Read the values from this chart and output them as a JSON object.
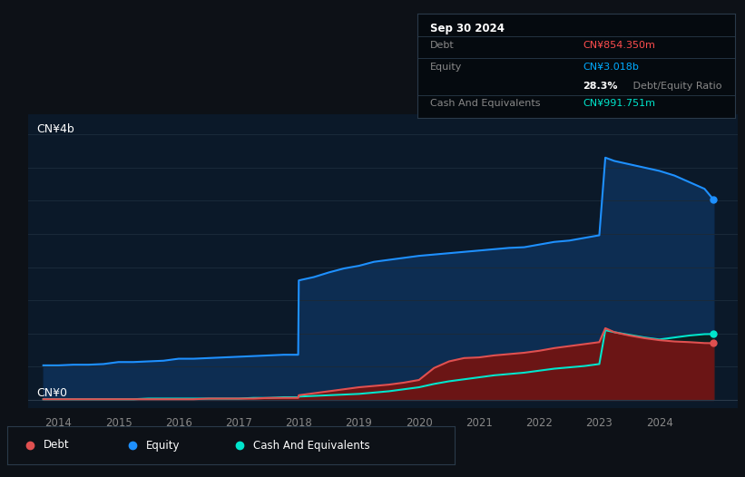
{
  "bg_color": "#0d1117",
  "plot_bg_color": "#0b1929",
  "grid_color": "#1a2a3a",
  "title_box": {
    "date": "Sep 30 2024",
    "debt_label": "Debt",
    "debt_value": "CN¥854.350m",
    "debt_color": "#ff4d4d",
    "equity_label": "Equity",
    "equity_value": "CN¥3.018b",
    "equity_color": "#00aaff",
    "ratio_bold": "28.3%",
    "ratio_text": " Debt/Equity Ratio",
    "cash_label": "Cash And Equivalents",
    "cash_value": "CN¥991.751m",
    "cash_color": "#00e5cc",
    "box_bg": "#050a0f",
    "box_border": "#2a3a4a"
  },
  "ylabel_top": "CN¥4b",
  "ylabel_bottom": "CN¥0",
  "xlim": [
    2013.5,
    2025.3
  ],
  "ylim": [
    -0.12,
    4.3
  ],
  "xticks": [
    2014,
    2015,
    2016,
    2017,
    2018,
    2019,
    2020,
    2021,
    2022,
    2023,
    2024
  ],
  "equity_color": "#1e90ff",
  "equity_fill": "#0d2d52",
  "debt_color": "#e05050",
  "debt_fill": "#6b1515",
  "cash_color": "#00e5cc",
  "cash_fill": "#0a2020",
  "legend": [
    {
      "label": "Debt",
      "color": "#e05050"
    },
    {
      "label": "Equity",
      "color": "#1e90ff"
    },
    {
      "label": "Cash And Equivalents",
      "color": "#00e5cc"
    }
  ],
  "years": [
    2013.75,
    2014.0,
    2014.25,
    2014.5,
    2014.75,
    2015.0,
    2015.25,
    2015.5,
    2015.75,
    2016.0,
    2016.25,
    2016.5,
    2016.75,
    2017.0,
    2017.25,
    2017.5,
    2017.75,
    2017.99,
    2018.0,
    2018.25,
    2018.5,
    2018.75,
    2019.0,
    2019.25,
    2019.5,
    2019.75,
    2020.0,
    2020.25,
    2020.5,
    2020.75,
    2021.0,
    2021.25,
    2021.5,
    2021.75,
    2022.0,
    2022.25,
    2022.5,
    2022.75,
    2023.0,
    2023.1,
    2023.25,
    2023.5,
    2023.75,
    2024.0,
    2024.25,
    2024.5,
    2024.75,
    2024.9
  ],
  "equity": [
    0.52,
    0.52,
    0.53,
    0.53,
    0.54,
    0.57,
    0.57,
    0.58,
    0.59,
    0.62,
    0.62,
    0.63,
    0.64,
    0.65,
    0.66,
    0.67,
    0.68,
    0.68,
    1.8,
    1.85,
    1.92,
    1.98,
    2.02,
    2.08,
    2.11,
    2.14,
    2.17,
    2.19,
    2.21,
    2.23,
    2.25,
    2.27,
    2.29,
    2.3,
    2.34,
    2.38,
    2.4,
    2.44,
    2.48,
    3.65,
    3.6,
    3.55,
    3.5,
    3.45,
    3.38,
    3.28,
    3.18,
    3.018
  ],
  "debt": [
    0.01,
    0.01,
    0.01,
    0.01,
    0.01,
    0.01,
    0.01,
    0.01,
    0.01,
    0.01,
    0.01,
    0.02,
    0.02,
    0.02,
    0.02,
    0.03,
    0.03,
    0.03,
    0.07,
    0.1,
    0.13,
    0.16,
    0.19,
    0.21,
    0.23,
    0.26,
    0.3,
    0.48,
    0.58,
    0.63,
    0.64,
    0.67,
    0.69,
    0.71,
    0.74,
    0.78,
    0.81,
    0.84,
    0.87,
    1.08,
    1.02,
    0.97,
    0.93,
    0.9,
    0.88,
    0.87,
    0.856,
    0.854
  ],
  "cash": [
    0.01,
    0.01,
    0.01,
    0.01,
    0.01,
    0.01,
    0.01,
    0.02,
    0.02,
    0.02,
    0.02,
    0.02,
    0.02,
    0.02,
    0.03,
    0.03,
    0.04,
    0.04,
    0.05,
    0.06,
    0.07,
    0.08,
    0.09,
    0.11,
    0.13,
    0.16,
    0.19,
    0.24,
    0.28,
    0.31,
    0.34,
    0.37,
    0.39,
    0.41,
    0.44,
    0.47,
    0.49,
    0.51,
    0.54,
    1.05,
    1.02,
    0.98,
    0.94,
    0.91,
    0.94,
    0.97,
    0.99,
    0.992
  ]
}
